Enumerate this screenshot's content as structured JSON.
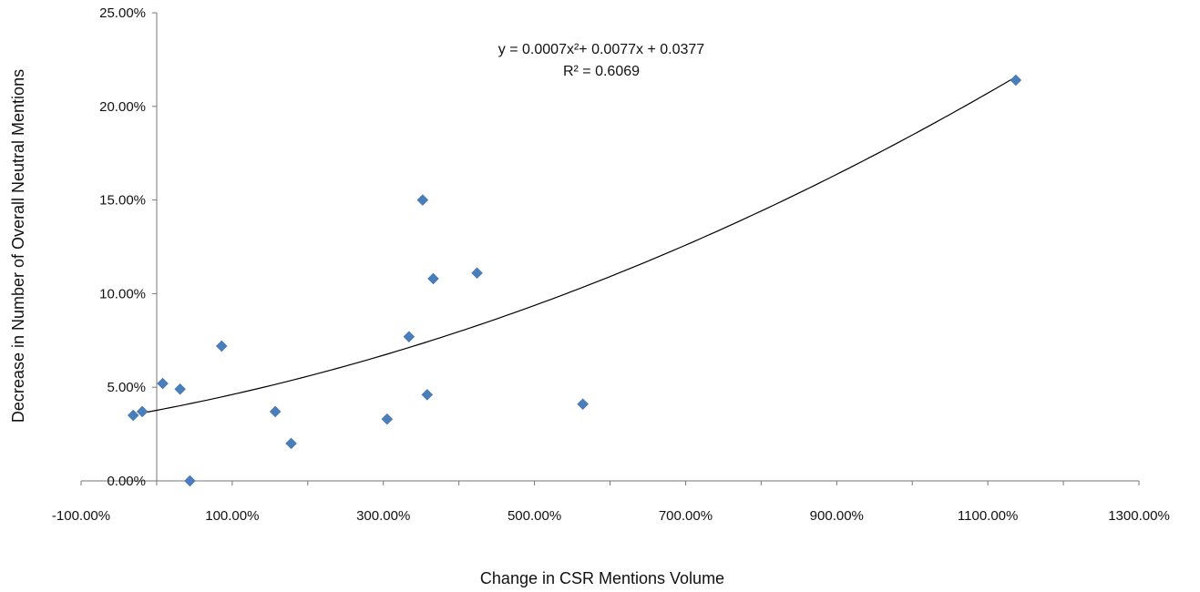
{
  "chart_data": {
    "type": "scatter",
    "xlabel": "Change in CSR Mentions Volume",
    "ylabel": "Decrease in Number of Overall Neutral Mentions",
    "xlim": [
      -100,
      1300
    ],
    "ylim": [
      0,
      25
    ],
    "x_ticks": [
      "-100.00%",
      "100.00%",
      "300.00%",
      "500.00%",
      "700.00%",
      "900.00%",
      "1100.00%",
      "1300.00%"
    ],
    "y_ticks": [
      "0.00%",
      "5.00%",
      "10.00%",
      "15.00%",
      "20.00%",
      "25.00%"
    ],
    "x_tick_values": [
      -100,
      100,
      300,
      500,
      700,
      900,
      1100,
      1300
    ],
    "y_tick_values": [
      0,
      5,
      10,
      15,
      20,
      25
    ],
    "series": [
      {
        "color": "#4a7ebb",
        "marker": "diamond",
        "points": [
          {
            "x": -31,
            "y": 3.5
          },
          {
            "x": -19,
            "y": 3.7
          },
          {
            "x": 8,
            "y": 5.2
          },
          {
            "x": 31,
            "y": 4.9
          },
          {
            "x": 44,
            "y": 0.0
          },
          {
            "x": 86,
            "y": 7.2
          },
          {
            "x": 157,
            "y": 3.7
          },
          {
            "x": 178,
            "y": 2.0
          },
          {
            "x": 305,
            "y": 3.3
          },
          {
            "x": 334,
            "y": 7.7
          },
          {
            "x": 352,
            "y": 15.0
          },
          {
            "x": 358,
            "y": 4.6
          },
          {
            "x": 366,
            "y": 10.8
          },
          {
            "x": 424,
            "y": 11.1
          },
          {
            "x": 564,
            "y": 4.1
          },
          {
            "x": 1137,
            "y": 21.4
          }
        ]
      }
    ],
    "trendline": {
      "type": "polynomial",
      "x_range": [
        -20,
        1137
      ],
      "equation": "y = 0.0007x²+ 0.0077x + 0.0377",
      "r_squared": "R² = 0.6069",
      "color": "#000000"
    },
    "grid": false,
    "legend": "none"
  }
}
